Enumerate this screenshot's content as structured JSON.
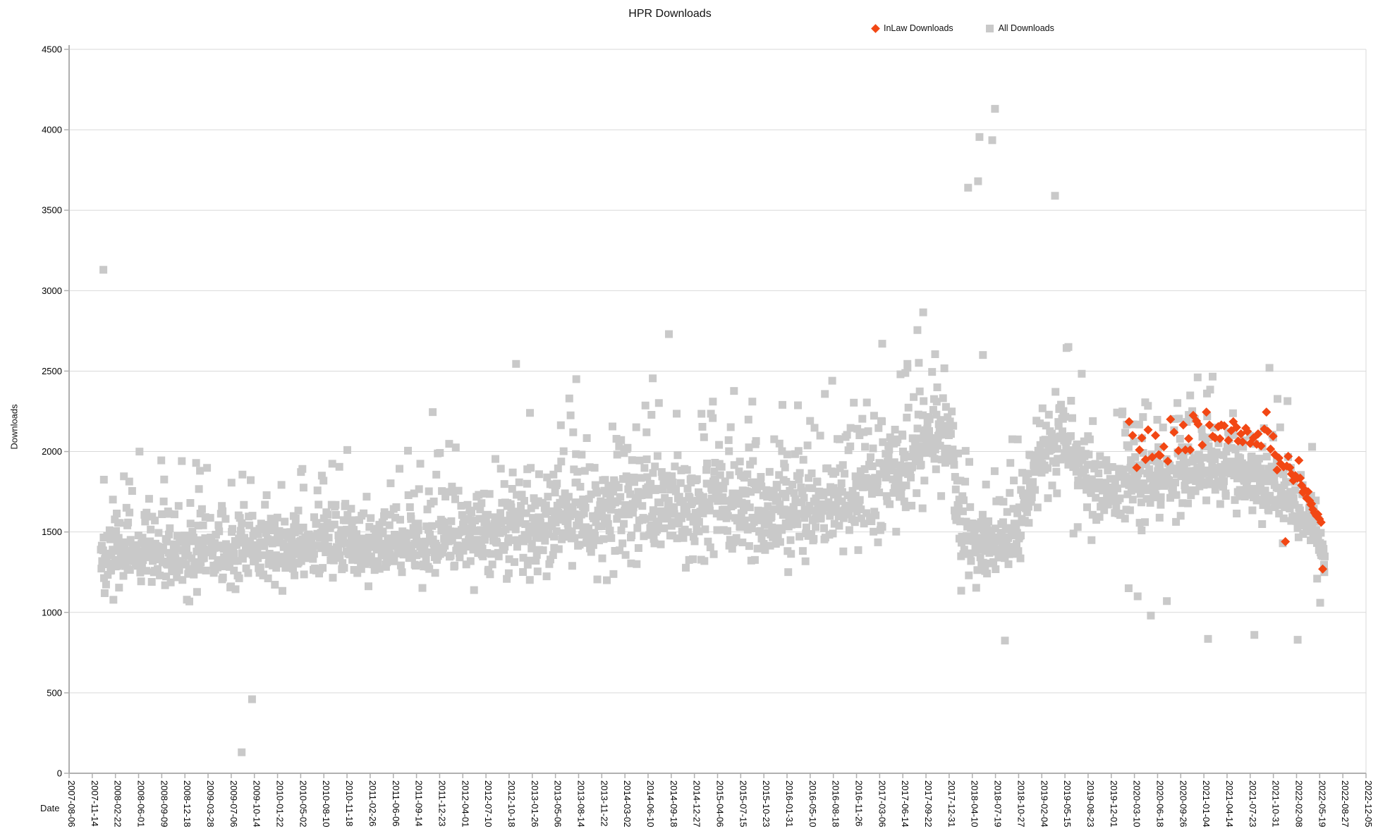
{
  "title": "HPR Downloads",
  "legend": [
    {
      "label": "InLaw Downloads",
      "marker": "diamond",
      "color": "#f24714"
    },
    {
      "label": "All Downloads",
      "marker": "square",
      "color": "#c9c9c9"
    }
  ],
  "colors": {
    "background": "#ffffff",
    "gridline": "#d9d9d9",
    "axis_line": "#b0b0b0",
    "tick_mark": "#b0b0b0",
    "text": "#000000",
    "inlaw_series": "#f24714",
    "all_series": "#c9c9c9"
  },
  "chart_data": {
    "type": "scatter",
    "title": "HPR Downloads",
    "xlabel": "Date",
    "ylabel": "Downloads",
    "ylim": [
      0,
      4500
    ],
    "y_ticks": [
      0,
      500,
      1000,
      1500,
      2000,
      2500,
      3000,
      3500,
      4000,
      4500
    ],
    "grid": "horizontal",
    "legend_position": "top-right",
    "x_axis_start": "2007-08-06",
    "x_axis_end": "2022-12-05",
    "x_tick_spacing_days": 100,
    "x_domain_days": [
      0,
      5600
    ],
    "x_tick_labels": [
      "2007-08-06",
      "2007-11-14",
      "2008-02-22",
      "2008-06-01",
      "2008-09-09",
      "2008-12-18",
      "2009-03-28",
      "2009-07-06",
      "2009-10-14",
      "2010-01-22",
      "2010-05-02",
      "2010-08-10",
      "2010-11-18",
      "2011-02-26",
      "2011-06-06",
      "2011-09-14",
      "2011-12-23",
      "2012-04-01",
      "2012-07-10",
      "2012-10-18",
      "2013-01-26",
      "2013-05-06",
      "2013-08-14",
      "2013-11-22",
      "2014-03-02",
      "2014-06-10",
      "2014-09-18",
      "2014-12-27",
      "2015-04-06",
      "2015-07-15",
      "2015-10-23",
      "2016-01-31",
      "2016-05-10",
      "2016-08-18",
      "2016-11-26",
      "2017-03-06",
      "2017-06-14",
      "2017-09-22",
      "2017-12-31",
      "2018-04-10",
      "2018-07-19",
      "2018-10-27",
      "2019-02-04",
      "2019-05-15",
      "2019-08-23",
      "2019-12-01",
      "2020-03-10",
      "2020-06-18",
      "2020-09-26",
      "2021-01-04",
      "2021-04-14",
      "2021-07-23",
      "2021-10-31",
      "2022-02-08",
      "2022-05-19",
      "2022-08-27",
      "2022-12-05"
    ],
    "series": [
      {
        "name": "All Downloads",
        "marker": "square",
        "color": "#c9c9c9",
        "marker_size": 11,
        "cloud": {
          "comment": "dense daily scatter approximated by an envelope band [day,min,max] interpolated linearly; day = days since 2007-08-06",
          "seed": 11,
          "step_days": 2,
          "day_start": 137,
          "day_end": 5421,
          "band": [
            [
              137,
              1150,
              1550
            ],
            [
              300,
              1170,
              1560
            ],
            [
              500,
              1150,
              1590
            ],
            [
              700,
              1150,
              1580
            ],
            [
              900,
              1190,
              1620
            ],
            [
              1100,
              1210,
              1650
            ],
            [
              1300,
              1200,
              1630
            ],
            [
              1500,
              1210,
              1650
            ],
            [
              1700,
              1240,
              1700
            ],
            [
              1900,
              1250,
              1760
            ],
            [
              2100,
              1290,
              1840
            ],
            [
              2300,
              1300,
              1900
            ],
            [
              2500,
              1340,
              1950
            ],
            [
              2700,
              1340,
              1990
            ],
            [
              2900,
              1350,
              2000
            ],
            [
              3100,
              1310,
              1950
            ],
            [
              3300,
              1400,
              2050
            ],
            [
              3500,
              1490,
              2140
            ],
            [
              3650,
              1600,
              2300
            ],
            [
              3740,
              1850,
              2490
            ],
            [
              3810,
              1800,
              2460
            ],
            [
              3845,
              1250,
              1700
            ],
            [
              4000,
              1180,
              1660
            ],
            [
              4100,
              1250,
              1780
            ],
            [
              4170,
              1550,
              2150
            ],
            [
              4230,
              1800,
              2350
            ],
            [
              4300,
              1850,
              2400
            ],
            [
              4360,
              1650,
              2150
            ],
            [
              4420,
              1550,
              2050
            ],
            [
              4480,
              1520,
              2000
            ],
            [
              4600,
              1580,
              2030
            ],
            [
              4800,
              1640,
              2080
            ],
            [
              5000,
              1680,
              2090
            ],
            [
              5100,
              1650,
              2060
            ],
            [
              5200,
              1570,
              2000
            ],
            [
              5270,
              1480,
              1930
            ],
            [
              5330,
              1390,
              1800
            ],
            [
              5390,
              1300,
              1650
            ],
            [
              5421,
              1240,
              1480
            ]
          ],
          "top_spray": {
            "prob": 0.1,
            "max": 380
          },
          "low_spray": {
            "prob": 0.025,
            "max": 110
          }
        },
        "outliers": [
          [
            148,
            3130
          ],
          [
            150,
            1825
          ],
          [
            304,
            2000
          ],
          [
            398,
            1945
          ],
          [
            745,
            130
          ],
          [
            790,
            460
          ],
          [
            1570,
            2245
          ],
          [
            1930,
            2545
          ],
          [
            1990,
            2240
          ],
          [
            2160,
            2330
          ],
          [
            2190,
            2450
          ],
          [
            2520,
            2455
          ],
          [
            2590,
            2730
          ],
          [
            2780,
            2310
          ],
          [
            2950,
            2310
          ],
          [
            3080,
            2290
          ],
          [
            3295,
            2440
          ],
          [
            3511,
            2670
          ],
          [
            3590,
            2480
          ],
          [
            3620,
            2520
          ],
          [
            3663,
            2755
          ],
          [
            3688,
            2865
          ],
          [
            3852,
            1135
          ],
          [
            3882,
            3640
          ],
          [
            3925,
            3680
          ],
          [
            3931,
            3955
          ],
          [
            3946,
            2600
          ],
          [
            3986,
            3935
          ],
          [
            3998,
            4130
          ],
          [
            4041,
            825
          ],
          [
            4257,
            3590
          ],
          [
            4315,
            2650
          ],
          [
            4337,
            1490
          ],
          [
            4355,
            1530
          ],
          [
            4575,
            1150
          ],
          [
            4614,
            1100
          ],
          [
            4671,
            980
          ],
          [
            4740,
            1070
          ],
          [
            4918,
            835
          ],
          [
            5118,
            860
          ],
          [
            5183,
            2520
          ],
          [
            5305,
            830
          ],
          [
            5389,
            1210
          ],
          [
            5402,
            1060
          ],
          [
            5413,
            1350
          ],
          [
            5420,
            1250
          ]
        ]
      },
      {
        "name": "InLaw Downloads",
        "marker": "diamond",
        "color": "#f24714",
        "marker_size": 13,
        "points": [
          [
            4577,
            2185
          ],
          [
            4592,
            2100
          ],
          [
            4610,
            1900
          ],
          [
            4622,
            2010
          ],
          [
            4632,
            2085
          ],
          [
            4648,
            1950
          ],
          [
            4659,
            2135
          ],
          [
            4677,
            1965
          ],
          [
            4691,
            2100
          ],
          [
            4705,
            1980
          ],
          [
            4711,
            1975
          ],
          [
            4727,
            2030
          ],
          [
            4744,
            1940
          ],
          [
            4756,
            2200
          ],
          [
            4771,
            2120
          ],
          [
            4790,
            2005
          ],
          [
            4811,
            2165
          ],
          [
            4820,
            2010
          ],
          [
            4834,
            2080
          ],
          [
            4841,
            2010
          ],
          [
            4854,
            2225
          ],
          [
            4868,
            2190
          ],
          [
            4875,
            2170
          ],
          [
            4893,
            2040
          ],
          [
            4911,
            2245
          ],
          [
            4924,
            2165
          ],
          [
            4938,
            2095
          ],
          [
            4948,
            2085
          ],
          [
            4962,
            2155
          ],
          [
            4969,
            2080
          ],
          [
            4975,
            2165
          ],
          [
            4988,
            2160
          ],
          [
            5006,
            2070
          ],
          [
            5018,
            2130
          ],
          [
            5027,
            2185
          ],
          [
            5041,
            2150
          ],
          [
            5048,
            2065
          ],
          [
            5060,
            2110
          ],
          [
            5067,
            2060
          ],
          [
            5081,
            2145
          ],
          [
            5088,
            2125
          ],
          [
            5100,
            2050
          ],
          [
            5114,
            2085
          ],
          [
            5128,
            2045
          ],
          [
            5134,
            2110
          ],
          [
            5147,
            2035
          ],
          [
            5161,
            2140
          ],
          [
            5170,
            2245
          ],
          [
            5176,
            2125
          ],
          [
            5188,
            2015
          ],
          [
            5199,
            2095
          ],
          [
            5207,
            1980
          ],
          [
            5216,
            1885
          ],
          [
            5224,
            1960
          ],
          [
            5231,
            1925
          ],
          [
            5244,
            1905
          ],
          [
            5252,
            1440
          ],
          [
            5258,
            1910
          ],
          [
            5264,
            1970
          ],
          [
            5271,
            1900
          ],
          [
            5278,
            1860
          ],
          [
            5286,
            1820
          ],
          [
            5295,
            1850
          ],
          [
            5304,
            1835
          ],
          [
            5310,
            1945
          ],
          [
            5316,
            1835
          ],
          [
            5322,
            1790
          ],
          [
            5328,
            1745
          ],
          [
            5331,
            1755
          ],
          [
            5337,
            1760
          ],
          [
            5344,
            1710
          ],
          [
            5350,
            1750
          ],
          [
            5356,
            1695
          ],
          [
            5362,
            1670
          ],
          [
            5365,
            1675
          ],
          [
            5371,
            1640
          ],
          [
            5377,
            1620
          ],
          [
            5383,
            1610
          ],
          [
            5386,
            1600
          ],
          [
            5392,
            1610
          ],
          [
            5399,
            1580
          ],
          [
            5406,
            1560
          ],
          [
            5413,
            1270
          ]
        ]
      }
    ]
  }
}
